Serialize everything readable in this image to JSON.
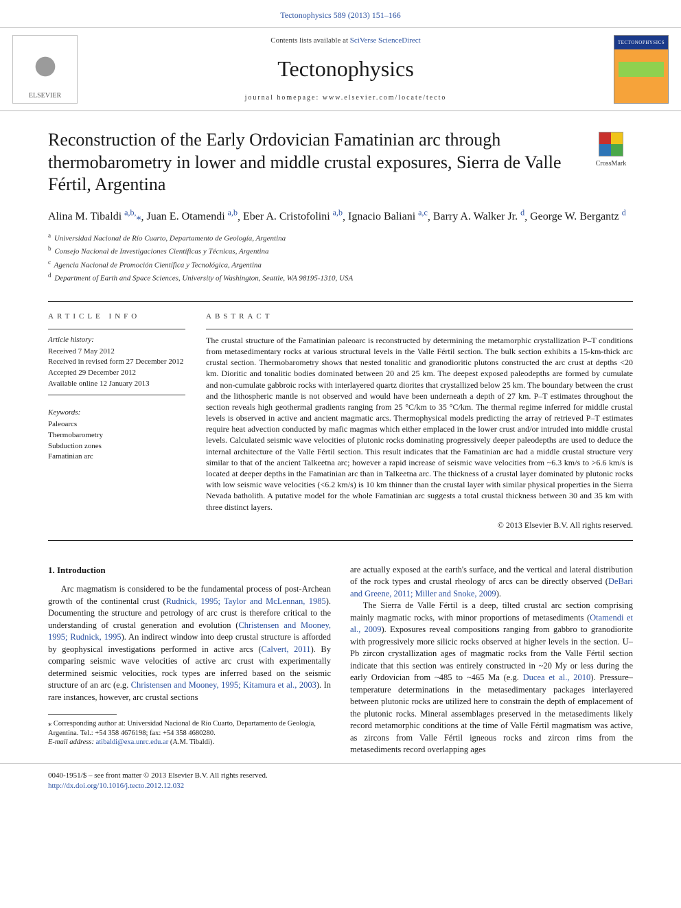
{
  "journal_ref": "Tectonophysics 589 (2013) 151–166",
  "header": {
    "contents_prefix": "Contents lists available at ",
    "contents_link": "SciVerse ScienceDirect",
    "journal_name": "Tectonophysics",
    "homepage_label": "journal homepage: www.elsevier.com/locate/tecto",
    "elsevier_label": "ELSEVIER",
    "cover_label": "TECTONOPHYSICS"
  },
  "crossmark_label": "CrossMark",
  "title": "Reconstruction of the Early Ordovician Famatinian arc through thermobarometry in lower and middle crustal exposures, Sierra de Valle Fértil, Argentina",
  "authors_html": [
    {
      "name": "Alina M. Tibaldi",
      "aff": "a,b,",
      "corr": true
    },
    {
      "name": "Juan E. Otamendi",
      "aff": "a,b"
    },
    {
      "name": "Eber A. Cristofolini",
      "aff": "a,b"
    },
    {
      "name": "Ignacio Baliani",
      "aff": "a,c"
    },
    {
      "name": "Barry A. Walker Jr.",
      "aff": "d"
    },
    {
      "name": "George W. Bergantz",
      "aff": "d"
    }
  ],
  "affiliations": [
    {
      "sup": "a",
      "text": "Universidad Nacional de Río Cuarto, Departamento de Geología, Argentina"
    },
    {
      "sup": "b",
      "text": "Consejo Nacional de Investigaciones Científicas y Técnicas, Argentina"
    },
    {
      "sup": "c",
      "text": "Agencia Nacional de Promoción Científica y Tecnológica, Argentina"
    },
    {
      "sup": "d",
      "text": "Department of Earth and Space Sciences, University of Washington, Seattle, WA 98195-1310, USA"
    }
  ],
  "info_label": "ARTICLE INFO",
  "abs_label": "ABSTRACT",
  "history_label": "Article history:",
  "history": [
    "Received 7 May 2012",
    "Received in revised form 27 December 2012",
    "Accepted 29 December 2012",
    "Available online 12 January 2013"
  ],
  "keywords_label": "Keywords:",
  "keywords": [
    "Paleoarcs",
    "Thermobarometry",
    "Subduction zones",
    "Famatinian arc"
  ],
  "abstract": "The crustal structure of the Famatinian paleoarc is reconstructed by determining the metamorphic crystallization P–T conditions from metasedimentary rocks at various structural levels in the Valle Fértil section. The bulk section exhibits a 15-km-thick arc crustal section. Thermobarometry shows that nested tonalitic and granodioritic plutons constructed the arc crust at depths <20 km. Dioritic and tonalitic bodies dominated between 20 and 25 km. The deepest exposed paleodepths are formed by cumulate and non-cumulate gabbroic rocks with interlayered quartz diorites that crystallized below 25 km. The boundary between the crust and the lithospheric mantle is not observed and would have been underneath a depth of 27 km. P–T estimates throughout the section reveals high geothermal gradients ranging from 25 °C/km to 35 °C/km. The thermal regime inferred for middle crustal levels is observed in active and ancient magmatic arcs. Thermophysical models predicting the array of retrieved P–T estimates require heat advection conducted by mafic magmas which either emplaced in the lower crust and/or intruded into middle crustal levels. Calculated seismic wave velocities of plutonic rocks dominating progressively deeper paleodepths are used to deduce the internal architecture of the Valle Fértil section. This result indicates that the Famatinian arc had a middle crustal structure very similar to that of the ancient Talkeetna arc; however a rapid increase of seismic wave velocities from ~6.3 km/s to >6.6 km/s is located at deeper depths in the Famatinian arc than in Talkeetna arc. The thickness of a crustal layer dominated by plutonic rocks with low seismic wave velocities (<6.2 km/s) is 10 km thinner than the crustal layer with similar physical properties in the Sierra Nevada batholith. A putative model for the whole Famatinian arc suggests a total crustal thickness between 30 and 35 km with three distinct layers.",
  "copyright": "© 2013 Elsevier B.V. All rights reserved.",
  "intro_heading": "1. Introduction",
  "col_left": {
    "p1_a": "Arc magmatism is considered to be the fundamental process of post-Archean growth of the continental crust (",
    "p1_l1": "Rudnick, 1995; Taylor and McLennan, 1985",
    "p1_b": "). Documenting the structure and petrology of arc crust is therefore critical to the understanding of crustal generation and evolution (",
    "p1_l2": "Christensen and Mooney, 1995; Rudnick, 1995",
    "p1_c": "). An indirect window into deep crustal structure is afforded by geophysical investigations performed in active arcs (",
    "p1_l3": "Calvert, 2011",
    "p1_d": "). By comparing seismic wave velocities of active arc crust with experimentally determined seismic velocities, rock types are inferred based on the seismic structure of an arc (e.g. ",
    "p1_l4": "Christensen and Mooney, 1995; Kitamura et al., 2003",
    "p1_e": "). In rare instances, however, arc crustal sections"
  },
  "col_right": {
    "p1_a": "are actually exposed at the earth's surface, and the vertical and lateral distribution of the rock types and crustal rheology of arcs can be directly observed (",
    "p1_l1": "DeBari and Greene, 2011; Miller and Snoke, 2009",
    "p1_b": ").",
    "p2_a": "The Sierra de Valle Fértil is a deep, tilted crustal arc section comprising mainly magmatic rocks, with minor proportions of metasediments (",
    "p2_l1": "Otamendi et al., 2009",
    "p2_b": "). Exposures reveal compositions ranging from gabbro to granodiorite with progressively more silicic rocks observed at higher levels in the section. U–Pb zircon crystallization ages of magmatic rocks from the Valle Fértil section indicate that this section was entirely constructed in ~20 My or less during the early Ordovician from ~485 to ~465 Ma (e.g. ",
    "p2_l2": "Ducea et al., 2010",
    "p2_c": "). Pressure–temperature determinations in the metasedimentary packages interlayered between plutonic rocks are utilized here to constrain the depth of emplacement of the plutonic rocks. Mineral assemblages preserved in the metasediments likely record metamorphic conditions at the time of Valle Fértil magmatism was active, as zircons from Valle Fértil igneous rocks and zircon rims from the metasediments record overlapping ages"
  },
  "footnote": {
    "corr": "⁎ Corresponding author at: Universidad Nacional de Río Cuarto, Departamento de Geología, Argentina. Tel.: +54 358 4676198; fax: +54 358 4680280.",
    "email_label": "E-mail address: ",
    "email": "atibaldi@exa.unrc.edu.ar",
    "email_tail": " (A.M. Tibaldi)."
  },
  "footer": {
    "left": "0040-1951/$ – see front matter © 2013 Elsevier B.V. All rights reserved.",
    "doi": "http://dx.doi.org/10.1016/j.tecto.2012.12.032"
  },
  "colors": {
    "link": "#2a50a0",
    "text": "#1a1a1a",
    "rule": "#1a1a1a",
    "cover_orange": "#f6a33a",
    "cover_blue": "#1b3a8a",
    "cover_green": "#8fd14f",
    "crossmark": [
      "#c9302c",
      "#f0c419",
      "#2e75b6",
      "#4aa84a"
    ]
  }
}
